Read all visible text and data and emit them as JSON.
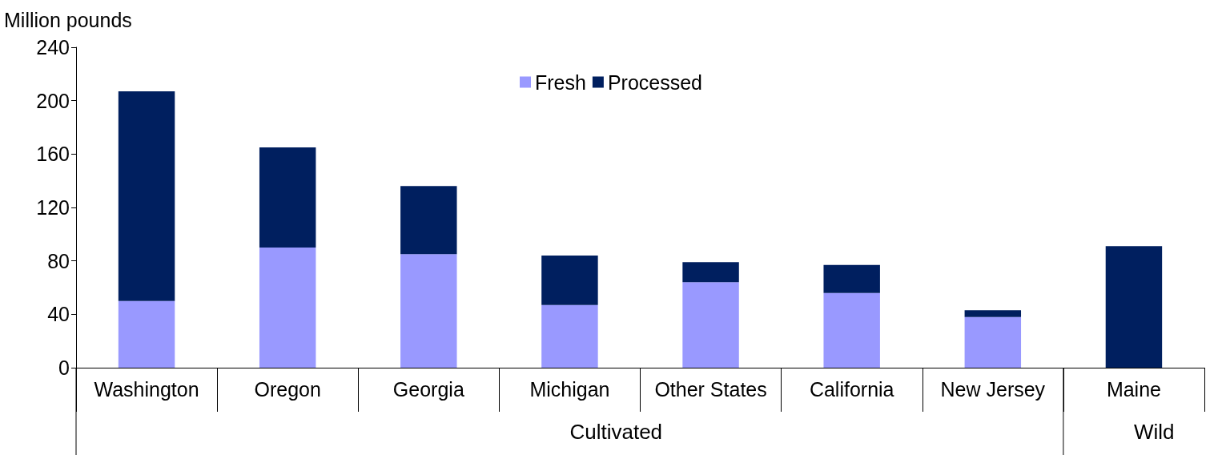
{
  "chart_data": {
    "type": "bar",
    "stacked": true,
    "ylabel": "Million pounds",
    "categories": [
      "Washington",
      "Oregon",
      "Georgia",
      "Michigan",
      "Other States",
      "California",
      "New Jersey",
      "Maine"
    ],
    "series": [
      {
        "name": "Fresh",
        "color": "#9999ff",
        "values": [
          50,
          90,
          85,
          47,
          64,
          56,
          38,
          0
        ]
      },
      {
        "name": "Processed",
        "color": "#001f5f",
        "values": [
          157,
          75,
          51,
          37,
          15,
          21,
          5,
          91
        ]
      }
    ],
    "ylim": [
      0,
      240
    ],
    "yticks": [
      0,
      40,
      80,
      120,
      160,
      200,
      240
    ],
    "grid": false,
    "legend": "top",
    "annotations": [
      "Cultivated",
      "Wild"
    ]
  }
}
